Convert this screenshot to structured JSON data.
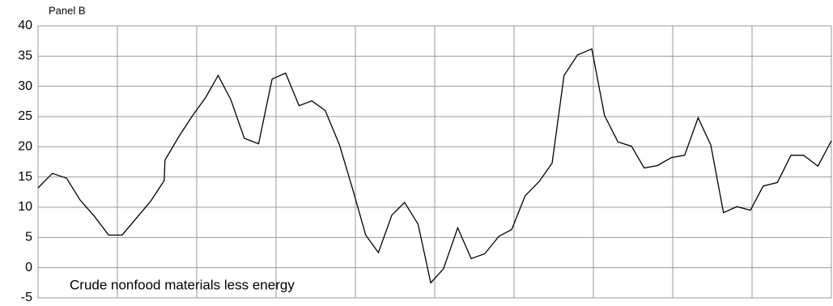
{
  "chart_data": {
    "type": "line",
    "title": "Panel B",
    "annotation": "Crude nonfood materials less energy",
    "x": [
      0,
      1.8,
      3.6,
      5.3,
      7.1,
      8.9,
      10.6,
      12.4,
      14.2,
      15.9,
      16.0,
      17.8,
      19.5,
      21.1,
      22.7,
      24.3,
      26.0,
      27.8,
      29.5,
      31.2,
      32.9,
      34.5,
      36.2,
      38.0,
      39.7,
      41.3,
      42.9,
      44.6,
      46.2,
      47.9,
      49.5,
      51.1,
      52.9,
      54.6,
      56.3,
      58.1,
      59.7,
      61.4,
      63.2,
      64.8,
      66.3,
      68.0,
      69.8,
      71.4,
      73.1,
      74.8,
      76.4,
      78.1,
      79.8,
      81.5,
      83.2,
      84.8,
      86.4,
      88.1,
      89.8,
      91.4,
      93.2,
      94.9,
      96.5,
      98.3,
      100
    ],
    "values": [
      13.2,
      15.6,
      14.8,
      11.2,
      8.5,
      5.4,
      5.4,
      8.2,
      11.0,
      14.4,
      17.8,
      21.8,
      25.2,
      28.1,
      31.8,
      27.8,
      21.4,
      20.5,
      31.2,
      32.2,
      26.8,
      27.6,
      26.0,
      20.3,
      12.8,
      5.4,
      2.5,
      8.7,
      10.8,
      7.2,
      -2.5,
      -0.2,
      6.6,
      1.5,
      2.3,
      5.2,
      6.3,
      11.9,
      14.3,
      17.3,
      31.8,
      35.2,
      36.2,
      25.2,
      20.8,
      20.1,
      16.5,
      16.9,
      18.2,
      18.6,
      24.8,
      20.3,
      9.1,
      10.1,
      9.5,
      13.5,
      14.1,
      18.6,
      18.6,
      16.8,
      21.0
    ],
    "color": "#000000",
    "xlim": [
      0,
      100
    ],
    "xticks": [
      10,
      20,
      30,
      40,
      50,
      60,
      70,
      80,
      90
    ],
    "ylim": [
      -5,
      40
    ],
    "yticks": [
      -5,
      0,
      5,
      10,
      15,
      20,
      25,
      30,
      35,
      40
    ],
    "grid": true
  }
}
